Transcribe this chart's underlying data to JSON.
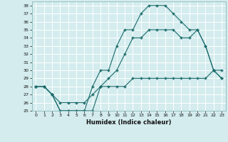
{
  "title": "",
  "xlabel": "Humidex (Indice chaleur)",
  "ylabel": "",
  "bg_color": "#d4ecee",
  "grid_color": "#ffffff",
  "line_color": "#1a6b6b",
  "xlim": [
    -0.5,
    23.5
  ],
  "ylim": [
    25,
    38.5
  ],
  "xticks": [
    0,
    1,
    2,
    3,
    4,
    5,
    6,
    7,
    8,
    9,
    10,
    11,
    12,
    13,
    14,
    15,
    16,
    17,
    18,
    19,
    20,
    21,
    22,
    23
  ],
  "yticks": [
    25,
    26,
    27,
    28,
    29,
    30,
    31,
    32,
    33,
    34,
    35,
    36,
    37,
    38
  ],
  "series1_x": [
    0,
    1,
    2,
    3,
    4,
    5,
    6,
    7,
    8,
    9,
    10,
    11,
    12,
    13,
    14,
    15,
    16,
    17,
    18,
    19,
    20,
    21,
    22,
    23
  ],
  "series1_y": [
    28,
    28,
    27,
    25,
    25,
    25,
    25,
    28,
    30,
    30,
    33,
    35,
    35,
    37,
    38,
    38,
    38,
    37,
    36,
    35,
    35,
    33,
    30,
    29
  ],
  "series2_x": [
    0,
    1,
    2,
    3,
    4,
    5,
    6,
    7,
    8,
    9,
    10,
    11,
    12,
    13,
    14,
    15,
    16,
    17,
    18,
    19,
    20,
    21,
    22,
    23
  ],
  "series2_y": [
    28,
    28,
    27,
    25,
    25,
    25,
    25,
    25,
    28,
    29,
    30,
    32,
    34,
    34,
    35,
    35,
    35,
    35,
    34,
    34,
    35,
    33,
    30,
    29
  ],
  "series3_x": [
    0,
    1,
    2,
    3,
    4,
    5,
    6,
    7,
    8,
    9,
    10,
    11,
    12,
    13,
    14,
    15,
    16,
    17,
    18,
    19,
    20,
    21,
    22,
    23
  ],
  "series3_y": [
    28,
    28,
    27,
    26,
    26,
    26,
    26,
    27,
    28,
    28,
    28,
    28,
    29,
    29,
    29,
    29,
    29,
    29,
    29,
    29,
    29,
    29,
    30,
    30
  ]
}
